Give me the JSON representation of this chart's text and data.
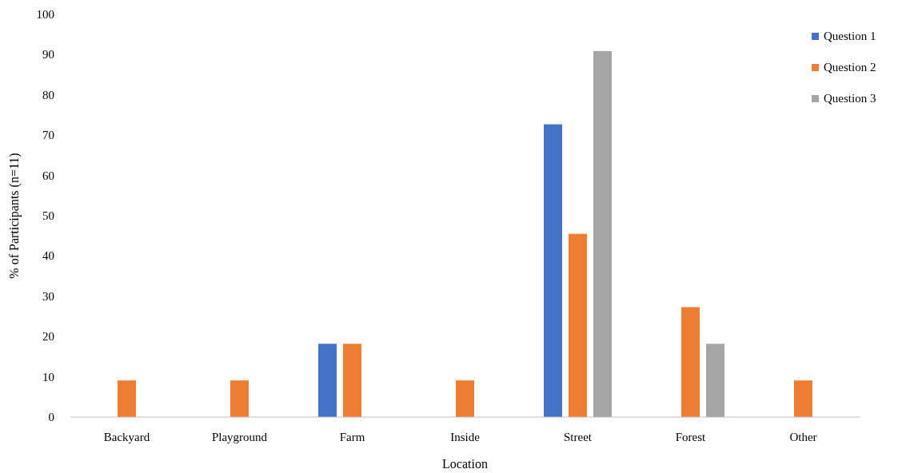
{
  "chart_data": {
    "type": "bar",
    "xlabel": "Location",
    "ylabel": "% of Participants (n=11)",
    "categories": [
      "Backyard",
      "Playground",
      "Farm",
      "Inside",
      "Street",
      "Forest",
      "Other"
    ],
    "series": [
      {
        "name": "Question 1",
        "color": "#4472c4",
        "values": [
          0,
          0,
          18.2,
          0,
          72.7,
          0,
          0
        ]
      },
      {
        "name": "Question 2",
        "color": "#ed7d31",
        "values": [
          9.1,
          9.1,
          18.2,
          9.1,
          45.5,
          27.3,
          9.1
        ]
      },
      {
        "name": "Question 3",
        "color": "#a5a5a5",
        "values": [
          0,
          0,
          0,
          0,
          90.9,
          18.2,
          0
        ]
      }
    ],
    "ylim": [
      0,
      100
    ],
    "yticks": [
      0,
      10,
      20,
      30,
      40,
      50,
      60,
      70,
      80,
      90,
      100
    ],
    "legend": "top right"
  }
}
